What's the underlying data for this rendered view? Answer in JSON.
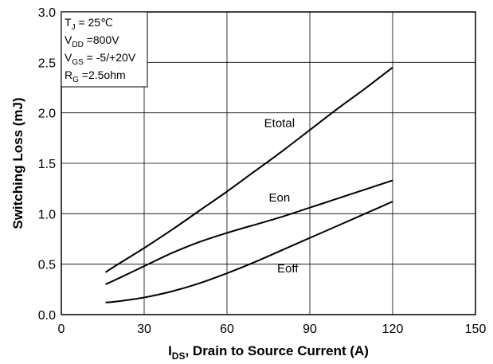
{
  "chart_data": {
    "type": "line",
    "title": "",
    "xlabel": {
      "main": "I",
      "sub": "DS",
      "rest": ", Drain to Source Current (A)"
    },
    "ylabel": "Switching Loss (mJ)",
    "xlim": [
      0,
      150
    ],
    "ylim": [
      0,
      3.0
    ],
    "x_ticks": [
      0,
      30,
      60,
      90,
      120,
      150
    ],
    "x_tick_labels": [
      "0",
      "30",
      "60",
      "90",
      "120",
      "150"
    ],
    "y_ticks": [
      0,
      0.5,
      1.0,
      1.5,
      2.0,
      2.5,
      3.0
    ],
    "y_tick_labels": [
      "0.0",
      "0.5",
      "1.0",
      "1.5",
      "2.0",
      "2.5",
      "3.0"
    ],
    "grid": true,
    "conditions": [
      {
        "main": "T",
        "sub": "J",
        "rest": " = 25℃"
      },
      {
        "main": "V",
        "sub": "DD",
        "rest": " =800V"
      },
      {
        "main": "V",
        "sub": "GS",
        "rest": " = -5/+20V"
      },
      {
        "main": "R",
        "sub": "G",
        "rest": " =2.5ohm"
      }
    ],
    "series": [
      {
        "name": "Etotal",
        "x": [
          16,
          20,
          30,
          40,
          50,
          60,
          70,
          80,
          90,
          100,
          110,
          120
        ],
        "y": [
          0.42,
          0.49,
          0.66,
          0.84,
          1.03,
          1.22,
          1.42,
          1.62,
          1.83,
          2.04,
          2.24,
          2.45
        ]
      },
      {
        "name": "Eon",
        "x": [
          16,
          20,
          30,
          40,
          50,
          60,
          70,
          80,
          90,
          100,
          110,
          120
        ],
        "y": [
          0.3,
          0.35,
          0.48,
          0.61,
          0.72,
          0.81,
          0.89,
          0.97,
          1.06,
          1.15,
          1.24,
          1.33
        ]
      },
      {
        "name": "Eoff",
        "x": [
          16,
          20,
          30,
          40,
          50,
          60,
          70,
          80,
          90,
          100,
          110,
          120
        ],
        "y": [
          0.12,
          0.13,
          0.17,
          0.23,
          0.31,
          0.41,
          0.52,
          0.64,
          0.76,
          0.88,
          1.0,
          1.12
        ]
      }
    ],
    "annotations": [
      {
        "text": "Etotal",
        "x": 79,
        "y": 1.86
      },
      {
        "text": "Eon",
        "x": 79,
        "y": 1.12
      },
      {
        "text": "Eoff",
        "x": 82,
        "y": 0.42
      }
    ]
  }
}
